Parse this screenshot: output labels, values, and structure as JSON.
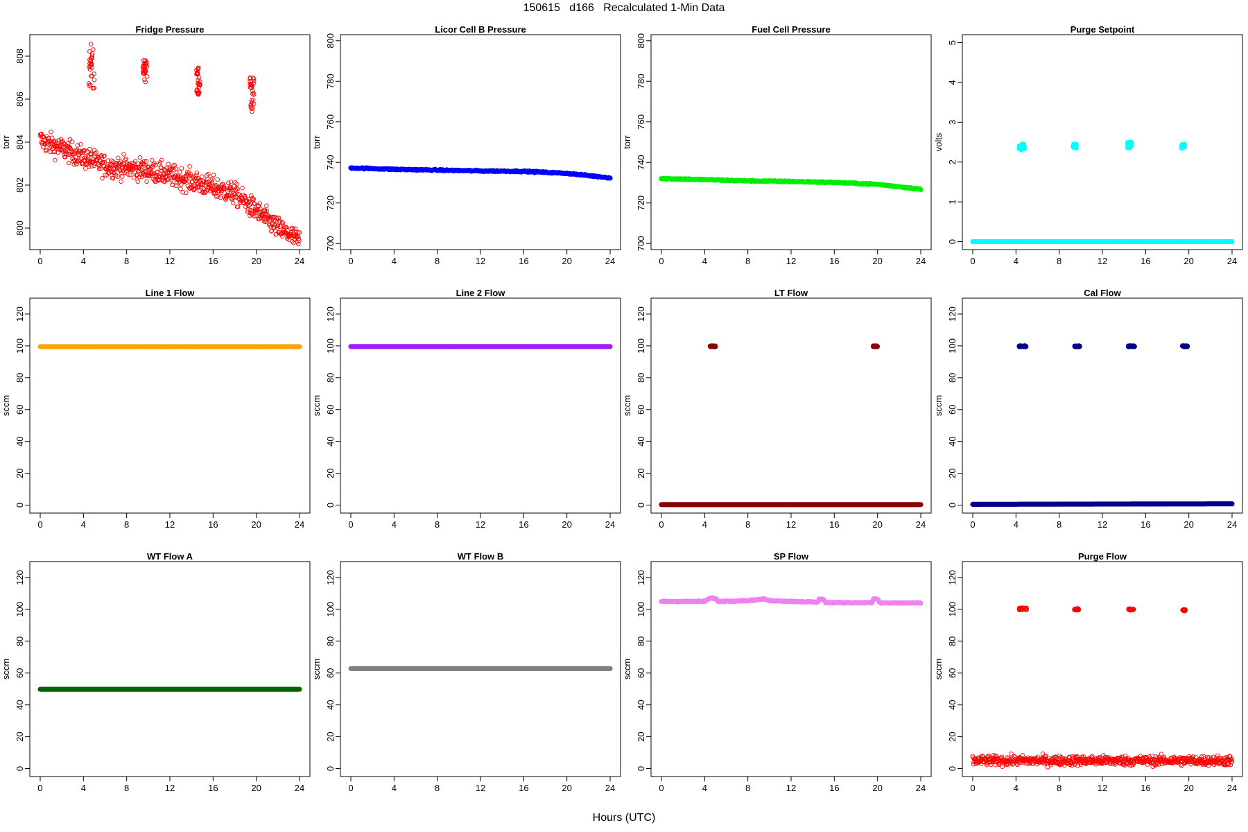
{
  "page": {
    "title": "150615   d166   Recalculated 1-Min Data",
    "xlabel": "Hours (UTC)"
  },
  "chart_data": [
    {
      "type": "scatter",
      "title": "Fridge Pressure",
      "xlabel": "",
      "ylabel": "torr",
      "xlim": [
        0,
        24
      ],
      "ylim": [
        799,
        809
      ],
      "xticks": [
        0,
        4,
        8,
        12,
        16,
        20,
        24
      ],
      "yticks": [
        800,
        802,
        804,
        806,
        808
      ],
      "series": [
        {
          "color": "#ff0000",
          "marker": "open-circle",
          "x_range": [
            0,
            24
          ],
          "trend": [
            [
              0,
              804.1
            ],
            [
              4,
              803.3
            ],
            [
              6,
              802.9
            ],
            [
              10,
              802.7
            ],
            [
              14,
              802.2
            ],
            [
              18,
              801.6
            ],
            [
              20,
              800.8
            ],
            [
              22,
              800.0
            ],
            [
              24,
              799.4
            ]
          ],
          "noise": 0.5,
          "bursts": [
            {
              "x": [
                4.5,
                5.0
              ],
              "y": [
                806.5,
                808.8
              ]
            },
            {
              "x": [
                9.5,
                9.9
              ],
              "y": [
                806.8,
                807.8
              ]
            },
            {
              "x": [
                14.4,
                14.8
              ],
              "y": [
                806.2,
                807.5
              ]
            },
            {
              "x": [
                19.4,
                19.8
              ],
              "y": [
                805.4,
                807.1
              ]
            }
          ]
        }
      ]
    },
    {
      "type": "scatter",
      "title": "Licor Cell B Pressure",
      "xlabel": "",
      "ylabel": "torr",
      "xlim": [
        0,
        24
      ],
      "ylim": [
        697,
        803
      ],
      "xticks": [
        0,
        4,
        8,
        12,
        16,
        20,
        24
      ],
      "yticks": [
        700,
        720,
        740,
        760,
        780,
        800
      ],
      "series": [
        {
          "color": "#0000ff",
          "marker": "filled-dense",
          "x_range": [
            0,
            24
          ],
          "trend": [
            [
              0,
              737.3
            ],
            [
              4,
              736.6
            ],
            [
              8,
              736.2
            ],
            [
              12,
              735.8
            ],
            [
              16,
              735.6
            ],
            [
              20,
              734.6
            ],
            [
              24,
              732.4
            ]
          ],
          "noise": 0.3,
          "bursts": []
        }
      ]
    },
    {
      "type": "scatter",
      "title": "Fuel Cell Pressure",
      "xlabel": "",
      "ylabel": "torr",
      "xlim": [
        0,
        24
      ],
      "ylim": [
        697,
        803
      ],
      "xticks": [
        0,
        4,
        8,
        12,
        16,
        20,
        24
      ],
      "yticks": [
        700,
        720,
        740,
        760,
        780,
        800
      ],
      "series": [
        {
          "color": "#00ee00",
          "marker": "filled-dense",
          "x_range": [
            0,
            24
          ],
          "trend": [
            [
              0,
              732.0
            ],
            [
              4,
              731.5
            ],
            [
              8,
              730.9
            ],
            [
              12,
              730.6
            ],
            [
              16,
              730.1
            ],
            [
              20,
              729.2
            ],
            [
              24,
              726.8
            ]
          ],
          "noise": 0.3,
          "bursts": []
        }
      ]
    },
    {
      "type": "scatter",
      "title": "Purge Setpoint",
      "xlabel": "",
      "ylabel": "volts",
      "xlim": [
        0,
        24
      ],
      "ylim": [
        -0.2,
        5.2
      ],
      "xticks": [
        0,
        4,
        8,
        12,
        16,
        20,
        24
      ],
      "yticks": [
        0,
        1,
        2,
        3,
        4,
        5
      ],
      "series": [
        {
          "color": "#00ffff",
          "marker": "filled-dense",
          "x_range": [
            0,
            24
          ],
          "trend": [
            [
              0,
              0
            ],
            [
              24,
              0
            ]
          ],
          "noise": 0,
          "bursts": [
            {
              "x": [
                4.3,
                4.8
              ],
              "y": [
                2.3,
                2.45
              ]
            },
            {
              "x": [
                9.3,
                9.6
              ],
              "y": [
                2.35,
                2.45
              ]
            },
            {
              "x": [
                14.3,
                14.7
              ],
              "y": [
                2.35,
                2.5
              ]
            },
            {
              "x": [
                19.3,
                19.6
              ],
              "y": [
                2.35,
                2.45
              ]
            }
          ]
        }
      ]
    },
    {
      "type": "scatter",
      "title": "Line 1 Flow",
      "xlabel": "",
      "ylabel": "sccm",
      "xlim": [
        0,
        24
      ],
      "ylim": [
        -5,
        130
      ],
      "xticks": [
        0,
        4,
        8,
        12,
        16,
        20,
        24
      ],
      "yticks": [
        0,
        20,
        40,
        60,
        80,
        100,
        120
      ],
      "series": [
        {
          "color": "#ffa500",
          "marker": "filled-dense",
          "x_range": [
            0,
            24
          ],
          "trend": [
            [
              0,
              99.5
            ],
            [
              24,
              99.5
            ]
          ],
          "noise": 0,
          "bursts": []
        }
      ]
    },
    {
      "type": "scatter",
      "title": "Line 2 Flow",
      "xlabel": "",
      "ylabel": "sccm",
      "xlim": [
        0,
        24
      ],
      "ylim": [
        -5,
        130
      ],
      "xticks": [
        0,
        4,
        8,
        12,
        16,
        20,
        24
      ],
      "yticks": [
        0,
        20,
        40,
        60,
        80,
        100,
        120
      ],
      "series": [
        {
          "color": "#a020f0",
          "marker": "filled-dense",
          "x_range": [
            0,
            24
          ],
          "trend": [
            [
              0,
              99.6
            ],
            [
              24,
              99.6
            ]
          ],
          "noise": 0,
          "bursts": []
        }
      ]
    },
    {
      "type": "scatter",
      "title": "LT Flow",
      "xlabel": "",
      "ylabel": "sccm",
      "xlim": [
        0,
        24
      ],
      "ylim": [
        -5,
        130
      ],
      "xticks": [
        0,
        4,
        8,
        12,
        16,
        20,
        24
      ],
      "yticks": [
        0,
        20,
        40,
        60,
        80,
        100,
        120
      ],
      "series": [
        {
          "color": "#8b0000",
          "marker": "filled-dense",
          "x_range": [
            0,
            24
          ],
          "trend": [
            [
              0,
              0.3
            ],
            [
              24,
              0.3
            ]
          ],
          "noise": 0,
          "bursts": [
            {
              "x": [
                4.5,
                5.0
              ],
              "y": [
                99.5,
                100
              ]
            },
            {
              "x": [
                19.6,
                20.0
              ],
              "y": [
                99.5,
                100
              ]
            }
          ]
        }
      ]
    },
    {
      "type": "scatter",
      "title": "Cal Flow",
      "xlabel": "",
      "ylabel": "sccm",
      "xlim": [
        0,
        24
      ],
      "ylim": [
        -5,
        130
      ],
      "xticks": [
        0,
        4,
        8,
        12,
        16,
        20,
        24
      ],
      "yticks": [
        0,
        20,
        40,
        60,
        80,
        100,
        120
      ],
      "series": [
        {
          "color": "#00008b",
          "marker": "filled-dense",
          "x_range": [
            0,
            24
          ],
          "trend": [
            [
              0,
              0.5
            ],
            [
              24,
              0.8
            ]
          ],
          "noise": 0,
          "bursts": [
            {
              "x": [
                4.3,
                5.0
              ],
              "y": [
                99.5,
                100
              ]
            },
            {
              "x": [
                9.4,
                9.9
              ],
              "y": [
                99.5,
                100
              ]
            },
            {
              "x": [
                14.4,
                15.0
              ],
              "y": [
                99.5,
                100
              ]
            },
            {
              "x": [
                19.4,
                19.9
              ],
              "y": [
                99.5,
                100
              ]
            }
          ]
        }
      ]
    },
    {
      "type": "scatter",
      "title": "WT Flow A",
      "xlabel": "",
      "ylabel": "sccm",
      "xlim": [
        0,
        24
      ],
      "ylim": [
        -5,
        130
      ],
      "xticks": [
        0,
        4,
        8,
        12,
        16,
        20,
        24
      ],
      "yticks": [
        0,
        20,
        40,
        60,
        80,
        100,
        120
      ],
      "series": [
        {
          "color": "#006400",
          "marker": "filled-dense",
          "x_range": [
            0,
            24
          ],
          "trend": [
            [
              0,
              49.8
            ],
            [
              24,
              49.8
            ]
          ],
          "noise": 0,
          "bursts": []
        }
      ]
    },
    {
      "type": "scatter",
      "title": "WT Flow B",
      "xlabel": "",
      "ylabel": "sccm",
      "xlim": [
        0,
        24
      ],
      "ylim": [
        -5,
        130
      ],
      "xticks": [
        0,
        4,
        8,
        12,
        16,
        20,
        24
      ],
      "yticks": [
        0,
        20,
        40,
        60,
        80,
        100,
        120
      ],
      "series": [
        {
          "color": "#808080",
          "marker": "filled-dense",
          "x_range": [
            0,
            24
          ],
          "trend": [
            [
              0,
              62.8
            ],
            [
              24,
              62.8
            ]
          ],
          "noise": 0,
          "bursts": []
        }
      ]
    },
    {
      "type": "scatter",
      "title": "SP Flow",
      "xlabel": "",
      "ylabel": "sccm",
      "xlim": [
        0,
        24
      ],
      "ylim": [
        -5,
        130
      ],
      "xticks": [
        0,
        4,
        8,
        12,
        16,
        20,
        24
      ],
      "yticks": [
        0,
        20,
        40,
        60,
        80,
        100,
        120
      ],
      "series": [
        {
          "color": "#ee82ee",
          "marker": "filled-dense",
          "x_range": [
            0,
            24
          ],
          "trend": [
            [
              0,
              105
            ],
            [
              4,
              105
            ],
            [
              4.5,
              107
            ],
            [
              5,
              107
            ],
            [
              5.2,
              105
            ],
            [
              8,
              105.5
            ],
            [
              9.5,
              106.5
            ],
            [
              10,
              105.5
            ],
            [
              14.5,
              104.5
            ],
            [
              14.6,
              106.5
            ],
            [
              15,
              106.5
            ],
            [
              15.2,
              104.2
            ],
            [
              19.5,
              104.2
            ],
            [
              19.6,
              106.5
            ],
            [
              20,
              106.5
            ],
            [
              20.2,
              104
            ],
            [
              24,
              104
            ]
          ],
          "noise": 0.3,
          "bursts": []
        }
      ]
    },
    {
      "type": "scatter",
      "title": "Purge Flow",
      "xlabel": "",
      "ylabel": "sccm",
      "xlim": [
        0,
        24
      ],
      "ylim": [
        -5,
        130
      ],
      "xticks": [
        0,
        4,
        8,
        12,
        16,
        20,
        24
      ],
      "yticks": [
        0,
        20,
        40,
        60,
        80,
        100,
        120
      ],
      "series": [
        {
          "color": "#ff0000",
          "marker": "open-circle",
          "x_range": [
            0,
            24
          ],
          "trend": [
            [
              0,
              5
            ],
            [
              24,
              5
            ]
          ],
          "noise": 3,
          "bursts": [
            {
              "x": [
                4.3,
                5.0
              ],
              "y": [
                99.5,
                101
              ]
            },
            {
              "x": [
                9.4,
                9.8
              ],
              "y": [
                99.5,
                100.5
              ]
            },
            {
              "x": [
                14.4,
                14.9
              ],
              "y": [
                99.5,
                100.5
              ]
            },
            {
              "x": [
                19.4,
                19.7
              ],
              "y": [
                99,
                100
              ]
            }
          ]
        }
      ]
    }
  ]
}
